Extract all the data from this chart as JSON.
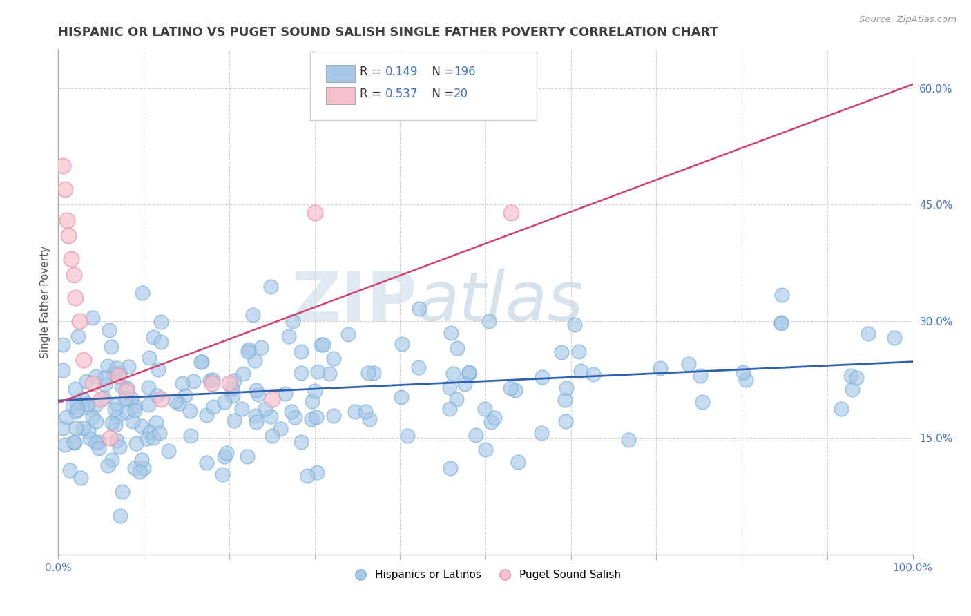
{
  "title": "HISPANIC OR LATINO VS PUGET SOUND SALISH SINGLE FATHER POVERTY CORRELATION CHART",
  "source": "Source: ZipAtlas.com",
  "ylabel": "Single Father Poverty",
  "xlim": [
    0,
    1
  ],
  "ylim": [
    0.0,
    0.65
  ],
  "yticks": [
    0.15,
    0.3,
    0.45,
    0.6
  ],
  "ytick_labels": [
    "15.0%",
    "30.0%",
    "45.0%",
    "60.0%"
  ],
  "watermark_zip": "ZIP",
  "watermark_atlas": "atlas",
  "blue_color": "#a8c8e8",
  "blue_edge_color": "#7ab0d8",
  "blue_line_color": "#3060b0",
  "pink_color": "#f8c0cc",
  "pink_edge_color": "#e890a8",
  "pink_line_color": "#d04070",
  "title_color": "#404040",
  "axis_color": "#4472c4",
  "legend_r1_val": "0.149",
  "legend_n1_val": "196",
  "legend_r2_val": "0.537",
  "legend_n2_val": "20",
  "blue_line_y0": 0.198,
  "blue_line_y1": 0.248,
  "pink_line_y0": 0.195,
  "pink_line_y1": 0.605
}
